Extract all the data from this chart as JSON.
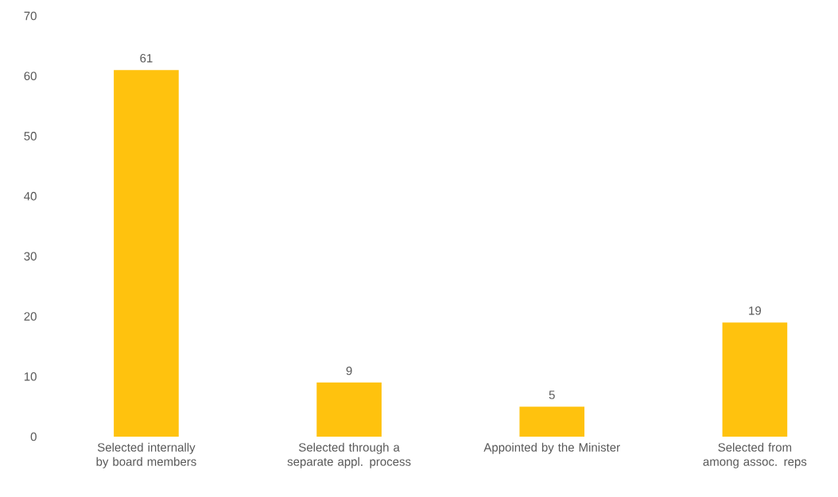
{
  "chart_data": {
    "type": "bar",
    "categories": [
      "Selected internally by board members",
      "Selected through a separate appl. process",
      "Appointed by the Minister",
      "Selected from among assoc. reps"
    ],
    "values": [
      61,
      9,
      5,
      19
    ],
    "color": "#ffc20e",
    "ylim": [
      0,
      70
    ],
    "yticks": [
      0,
      10,
      20,
      30,
      40,
      50,
      60,
      70
    ],
    "data_labels": true
  }
}
